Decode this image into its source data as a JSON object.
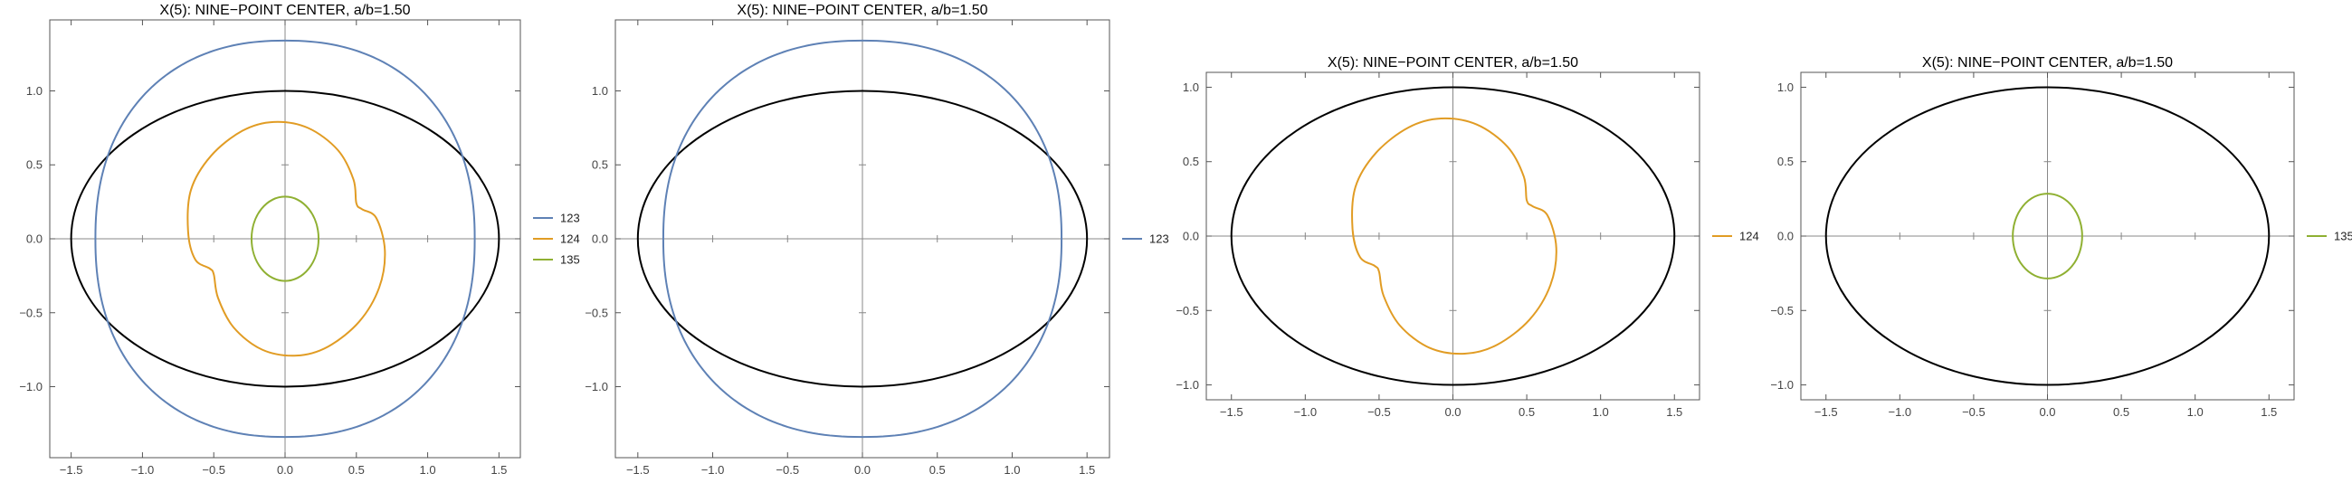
{
  "chart_data": [
    {
      "type": "line",
      "title": "X(5): NINE−POINT CENTER, a/b=1.50",
      "xlabel": "",
      "ylabel": "",
      "xlim": [
        -1.65,
        1.65
      ],
      "ylim": [
        -1.48,
        1.48
      ],
      "xticks": [
        -1.5,
        -1.0,
        -0.5,
        0.0,
        0.5,
        1.0,
        1.5
      ],
      "xtick_labels": [
        "−1.5",
        "−1.0",
        "−0.5",
        "0.0",
        "0.5",
        "1.0",
        "1.5"
      ],
      "yticks": [
        -1.0,
        -0.5,
        0.0,
        0.5,
        1.0
      ],
      "ytick_labels": [
        "−1.0",
        "−0.5",
        "0.0",
        "0.5",
        "1.0"
      ],
      "grid": false,
      "legend_position": "right",
      "ellipse": {
        "semi_x": 1.5,
        "semi_y": 1.0,
        "color": "#000000"
      },
      "series": [
        {
          "name": "123",
          "color": "#5E81B5",
          "shape": "superellipse",
          "cx": 0.0,
          "cy": 0.0,
          "rx": 1.33,
          "ry": 1.34,
          "exponent": 2.25
        },
        {
          "name": "124",
          "color": "#E19C24",
          "shape": "closed-curve",
          "points": [
            [
              -0.08,
              0.79
            ],
            [
              -0.3,
              0.73
            ],
            [
              -0.52,
              0.56
            ],
            [
              -0.66,
              0.33
            ],
            [
              -0.68,
              0.05
            ],
            [
              -0.63,
              -0.14
            ],
            [
              -0.53,
              -0.2
            ],
            [
              -0.5,
              -0.24
            ],
            [
              -0.47,
              -0.4
            ],
            [
              -0.36,
              -0.6
            ],
            [
              -0.16,
              -0.75
            ],
            [
              0.08,
              -0.79
            ],
            [
              0.3,
              -0.73
            ],
            [
              0.52,
              -0.56
            ],
            [
              0.66,
              -0.33
            ],
            [
              0.7,
              -0.08
            ],
            [
              0.64,
              0.14
            ],
            [
              0.54,
              0.2
            ],
            [
              0.5,
              0.24
            ],
            [
              0.48,
              0.4
            ],
            [
              0.37,
              0.6
            ],
            [
              0.16,
              0.75
            ]
          ]
        },
        {
          "name": "135",
          "color": "#8FB032",
          "shape": "ellipse",
          "cx": 0.0,
          "cy": 0.0,
          "rx": 0.235,
          "ry": 0.285
        }
      ]
    },
    {
      "type": "line",
      "title": "X(5): NINE−POINT CENTER, a/b=1.50",
      "xlabel": "",
      "ylabel": "",
      "xlim": [
        -1.65,
        1.65
      ],
      "ylim": [
        -1.48,
        1.48
      ],
      "xticks": [
        -1.5,
        -1.0,
        -0.5,
        0.0,
        0.5,
        1.0,
        1.5
      ],
      "xtick_labels": [
        "−1.5",
        "−1.0",
        "−0.5",
        "0.0",
        "0.5",
        "1.0",
        "1.5"
      ],
      "yticks": [
        -1.0,
        -0.5,
        0.0,
        0.5,
        1.0
      ],
      "ytick_labels": [
        "−1.0",
        "−0.5",
        "0.0",
        "0.5",
        "1.0"
      ],
      "grid": false,
      "legend_position": "right",
      "ellipse": {
        "semi_x": 1.5,
        "semi_y": 1.0,
        "color": "#000000"
      },
      "series": [
        {
          "name": "123",
          "color": "#5E81B5",
          "shape": "superellipse",
          "cx": 0.0,
          "cy": 0.0,
          "rx": 1.33,
          "ry": 1.34,
          "exponent": 2.25
        }
      ]
    },
    {
      "type": "line",
      "title": "X(5): NINE−POINT CENTER, a/b=1.50",
      "xlabel": "",
      "ylabel": "",
      "xlim": [
        -1.67,
        1.67
      ],
      "ylim": [
        -1.1,
        1.1
      ],
      "xticks": [
        -1.5,
        -1.0,
        -0.5,
        0.0,
        0.5,
        1.0,
        1.5
      ],
      "xtick_labels": [
        "−1.5",
        "−1.0",
        "−0.5",
        "0.0",
        "0.5",
        "1.0",
        "1.5"
      ],
      "yticks": [
        -1.0,
        -0.5,
        0.0,
        0.5,
        1.0
      ],
      "ytick_labels": [
        "−1.0",
        "−0.5",
        "0.0",
        "0.5",
        "1.0"
      ],
      "grid": false,
      "legend_position": "right",
      "ellipse": {
        "semi_x": 1.5,
        "semi_y": 1.0,
        "color": "#000000"
      },
      "series": [
        {
          "name": "124",
          "color": "#E19C24",
          "shape": "closed-curve",
          "points": [
            [
              -0.08,
              0.79
            ],
            [
              -0.3,
              0.73
            ],
            [
              -0.52,
              0.56
            ],
            [
              -0.66,
              0.33
            ],
            [
              -0.68,
              0.05
            ],
            [
              -0.63,
              -0.14
            ],
            [
              -0.53,
              -0.2
            ],
            [
              -0.5,
              -0.24
            ],
            [
              -0.47,
              -0.4
            ],
            [
              -0.36,
              -0.6
            ],
            [
              -0.16,
              -0.75
            ],
            [
              0.08,
              -0.79
            ],
            [
              0.3,
              -0.73
            ],
            [
              0.52,
              -0.56
            ],
            [
              0.66,
              -0.33
            ],
            [
              0.7,
              -0.08
            ],
            [
              0.64,
              0.14
            ],
            [
              0.54,
              0.2
            ],
            [
              0.5,
              0.24
            ],
            [
              0.48,
              0.4
            ],
            [
              0.37,
              0.6
            ],
            [
              0.16,
              0.75
            ]
          ]
        }
      ]
    },
    {
      "type": "line",
      "title": "X(5): NINE−POINT CENTER, a/b=1.50",
      "xlabel": "",
      "ylabel": "",
      "xlim": [
        -1.67,
        1.67
      ],
      "ylim": [
        -1.1,
        1.1
      ],
      "xticks": [
        -1.5,
        -1.0,
        -0.5,
        0.0,
        0.5,
        1.0,
        1.5
      ],
      "xtick_labels": [
        "−1.5",
        "−1.0",
        "−0.5",
        "0.0",
        "0.5",
        "1.0",
        "1.5"
      ],
      "yticks": [
        -1.0,
        -0.5,
        0.0,
        0.5,
        1.0
      ],
      "ytick_labels": [
        "−1.0",
        "−0.5",
        "0.0",
        "0.5",
        "1.0"
      ],
      "grid": false,
      "legend_position": "right",
      "ellipse": {
        "semi_x": 1.5,
        "semi_y": 1.0,
        "color": "#000000"
      },
      "series": [
        {
          "name": "135",
          "color": "#8FB032",
          "shape": "ellipse",
          "cx": 0.0,
          "cy": 0.0,
          "rx": 0.235,
          "ry": 0.285
        }
      ]
    }
  ]
}
